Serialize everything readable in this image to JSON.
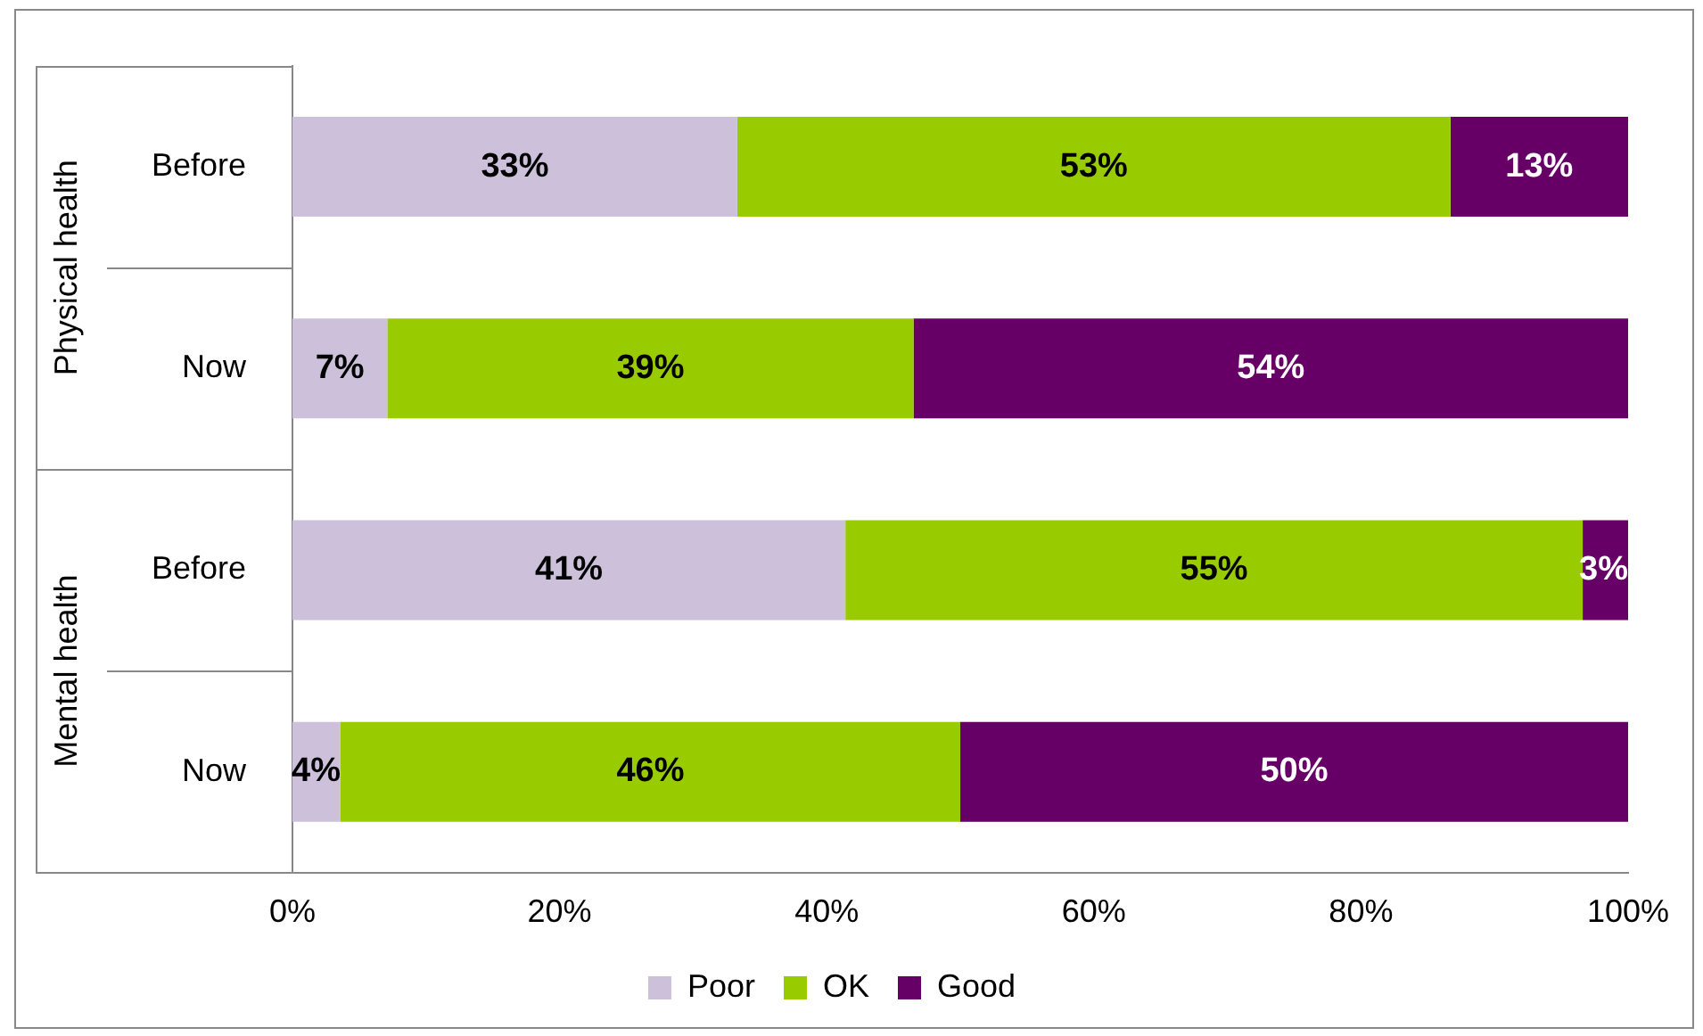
{
  "chart_data": {
    "type": "bar",
    "orientation": "horizontal",
    "stacked": true,
    "categories": [
      "Before",
      "Now",
      "Before",
      "Now"
    ],
    "annotations": [
      "Physical health",
      "Mental health"
    ],
    "series": [
      {
        "name": "Poor",
        "color": "#ccc0da",
        "values": [
          33.3,
          7.1,
          41.4,
          3.6
        ],
        "value_labels": [
          "33%",
          "7%",
          "41%",
          "4%"
        ]
      },
      {
        "name": "OK",
        "color": "#99cc00",
        "values": [
          53.4,
          39.4,
          55.2,
          46.4
        ],
        "value_labels": [
          "53%",
          "39%",
          "55%",
          "46%"
        ]
      },
      {
        "name": "Good",
        "color": "#660066",
        "values": [
          13.3,
          53.5,
          3.4,
          50.0
        ],
        "value_labels": [
          "13%",
          "54%",
          "3%",
          "50%"
        ]
      }
    ],
    "xlim": [
      0,
      100
    ],
    "xticks": [
      {
        "value": 0,
        "label": "0%"
      },
      {
        "value": 20,
        "label": "20%"
      },
      {
        "value": 40,
        "label": "40%"
      },
      {
        "value": 60,
        "label": "60%"
      },
      {
        "value": 80,
        "label": "80%"
      },
      {
        "value": 100,
        "label": "100%"
      }
    ],
    "grid": false,
    "legend": "bottom"
  }
}
